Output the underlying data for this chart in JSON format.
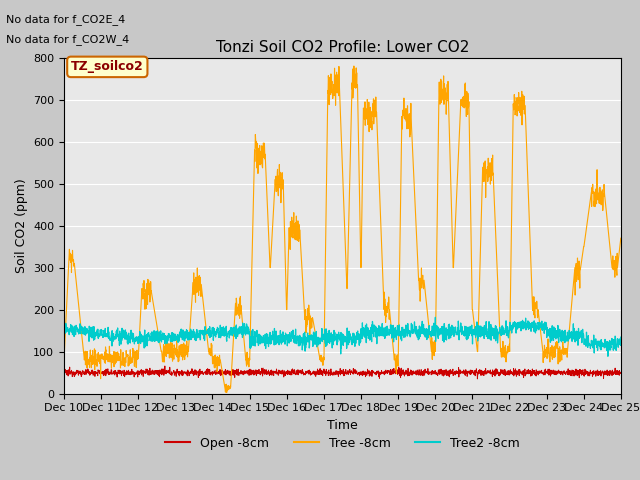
{
  "title": "Tonzi Soil CO2 Profile: Lower CO2",
  "ylabel": "Soil CO2 (ppm)",
  "xlabel": "Time",
  "annotations": [
    "No data for f_CO2E_4",
    "No data for f_CO2W_4"
  ],
  "legend_box_label": "TZ_soilco2",
  "ylim": [
    0,
    800
  ],
  "xtick_labels": [
    "Dec 10",
    "Dec 11",
    "Dec 12",
    "Dec 13",
    "Dec 14",
    "Dec 15",
    "Dec 16",
    "Dec 17",
    "Dec 18",
    "Dec 19",
    "Dec 20",
    "Dec 21",
    "Dec 22",
    "Dec 23",
    "Dec 24",
    "Dec 25"
  ],
  "fig_bg_color": "#c8c8c8",
  "plot_bg_color": "#e8e8e8",
  "grid_color": "#ffffff",
  "line_colors": {
    "open": "#cc0000",
    "tree": "#FFA500",
    "tree2": "#00CCCC"
  },
  "legend_labels": [
    "Open -8cm",
    "Tree -8cm",
    "Tree2 -8cm"
  ]
}
